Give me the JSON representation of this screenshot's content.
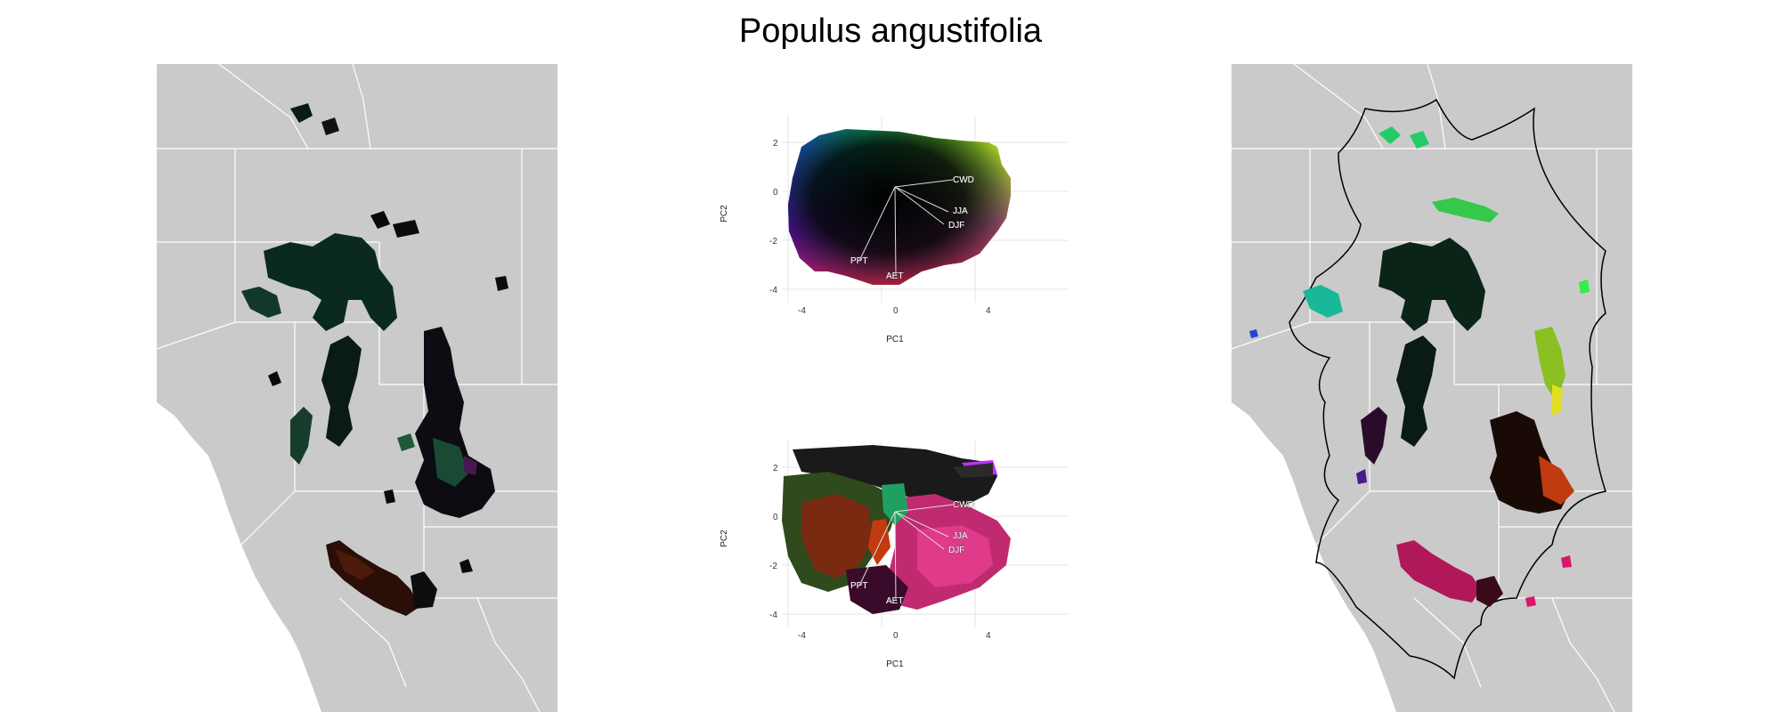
{
  "title": "Populus angustifolia",
  "colors": {
    "map_background": "#cacaca",
    "state_border": "#ffffff",
    "ocean": "#ffffff",
    "hull_line": "#000000"
  },
  "pca": {
    "x_label": "PC1",
    "y_label": "PC2",
    "x_ticks": [
      "-4",
      "0",
      "4"
    ],
    "y_ticks": [
      "2",
      "0",
      "-2",
      "-4"
    ],
    "vectors": [
      "CWD",
      "JJA",
      "DJF",
      "PPT",
      "AET"
    ]
  }
}
